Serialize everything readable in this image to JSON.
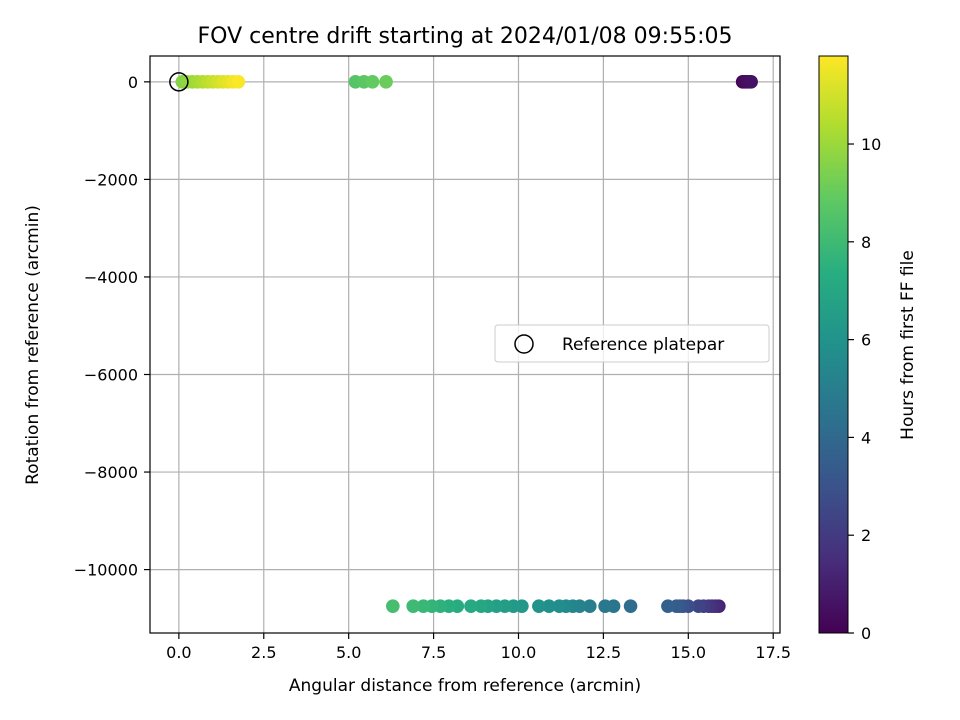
{
  "chart_data": {
    "type": "scatter",
    "title": "FOV centre drift starting at 2024/01/08 09:55:05",
    "xlabel": "Angular distance from reference (arcmin)",
    "ylabel": "Rotation from reference (arcmin)",
    "xlim": [
      -0.85,
      17.7
    ],
    "ylim": [
      -11300,
      530
    ],
    "xticks": [
      0.0,
      2.5,
      5.0,
      7.5,
      10.0,
      12.5,
      15.0,
      17.5
    ],
    "xtick_labels": [
      "0.0",
      "2.5",
      "5.0",
      "7.5",
      "10.0",
      "12.5",
      "15.0",
      "17.5"
    ],
    "yticks": [
      0,
      -2000,
      -4000,
      -6000,
      -8000,
      -10000
    ],
    "ytick_labels": [
      "0",
      "−2000",
      "−4000",
      "−6000",
      "−8000",
      "−10000"
    ],
    "grid": true,
    "legend": {
      "label": "Reference platepar",
      "position": "center-right"
    },
    "reference_point": {
      "x": 0.0,
      "y": 0
    },
    "colorbar": {
      "label": "Hours from first FF file",
      "colormap": "viridis",
      "range": [
        0,
        11.8
      ],
      "ticks": [
        0,
        2,
        4,
        6,
        8,
        10
      ],
      "tick_labels": [
        "0",
        "2",
        "4",
        "6",
        "8",
        "10"
      ]
    },
    "series": [
      {
        "points": [
          [
            16.6,
            0,
            0.05
          ],
          [
            16.7,
            0,
            0.15
          ],
          [
            16.8,
            0,
            0.25
          ],
          [
            16.65,
            0,
            0.35
          ],
          [
            16.75,
            0,
            0.45
          ],
          [
            16.85,
            0,
            0.55
          ]
        ]
      },
      {
        "points": [
          [
            15.9,
            -10750,
            1.2
          ],
          [
            15.8,
            -10750,
            1.4
          ],
          [
            15.7,
            -10750,
            1.6
          ],
          [
            15.6,
            -10750,
            1.8
          ],
          [
            15.45,
            -10750,
            2.1
          ],
          [
            15.3,
            -10750,
            2.4
          ],
          [
            15.0,
            -10750,
            2.8
          ],
          [
            14.85,
            -10750,
            3.0
          ],
          [
            14.75,
            -10750,
            3.2
          ],
          [
            14.65,
            -10750,
            3.4
          ],
          [
            14.4,
            -10750,
            3.6
          ]
        ]
      },
      {
        "points": [
          [
            13.3,
            -10750,
            4.2
          ],
          [
            12.8,
            -10750,
            4.5
          ],
          [
            12.55,
            -10750,
            4.7
          ],
          [
            12.1,
            -10750,
            5.0
          ],
          [
            11.8,
            -10750,
            5.2
          ],
          [
            11.6,
            -10750,
            5.35
          ],
          [
            11.4,
            -10750,
            5.5
          ],
          [
            11.2,
            -10750,
            5.65
          ],
          [
            10.9,
            -10750,
            5.85
          ],
          [
            10.6,
            -10750,
            6.0
          ]
        ]
      },
      {
        "points": [
          [
            10.1,
            -10750,
            6.2
          ],
          [
            9.85,
            -10750,
            6.35
          ],
          [
            9.6,
            -10750,
            6.5
          ],
          [
            9.35,
            -10750,
            6.65
          ],
          [
            9.1,
            -10750,
            6.8
          ],
          [
            8.9,
            -10750,
            6.95
          ],
          [
            8.6,
            -10750,
            7.1
          ],
          [
            8.2,
            -10750,
            7.25
          ],
          [
            7.95,
            -10750,
            7.4
          ],
          [
            7.7,
            -10750,
            7.55
          ],
          [
            7.45,
            -10750,
            7.7
          ],
          [
            7.2,
            -10750,
            7.85
          ],
          [
            6.9,
            -10750,
            8.0
          ],
          [
            6.3,
            -10750,
            8.2
          ]
        ]
      },
      {
        "points": [
          [
            5.2,
            0,
            8.6
          ],
          [
            5.45,
            0,
            8.75
          ],
          [
            5.7,
            0,
            8.9
          ],
          [
            6.1,
            0,
            9.05
          ]
        ]
      },
      {
        "points": [
          [
            0.1,
            0,
            9.6
          ],
          [
            0.25,
            0,
            9.8
          ],
          [
            0.4,
            0,
            10.0
          ],
          [
            0.55,
            0,
            10.2
          ],
          [
            0.7,
            0,
            10.4
          ],
          [
            0.85,
            0,
            10.6
          ],
          [
            1.0,
            0,
            10.8
          ],
          [
            1.15,
            0,
            11.0
          ],
          [
            1.3,
            0,
            11.2
          ],
          [
            1.45,
            0,
            11.4
          ],
          [
            1.6,
            0,
            11.6
          ],
          [
            1.75,
            0,
            11.75
          ]
        ]
      }
    ]
  }
}
